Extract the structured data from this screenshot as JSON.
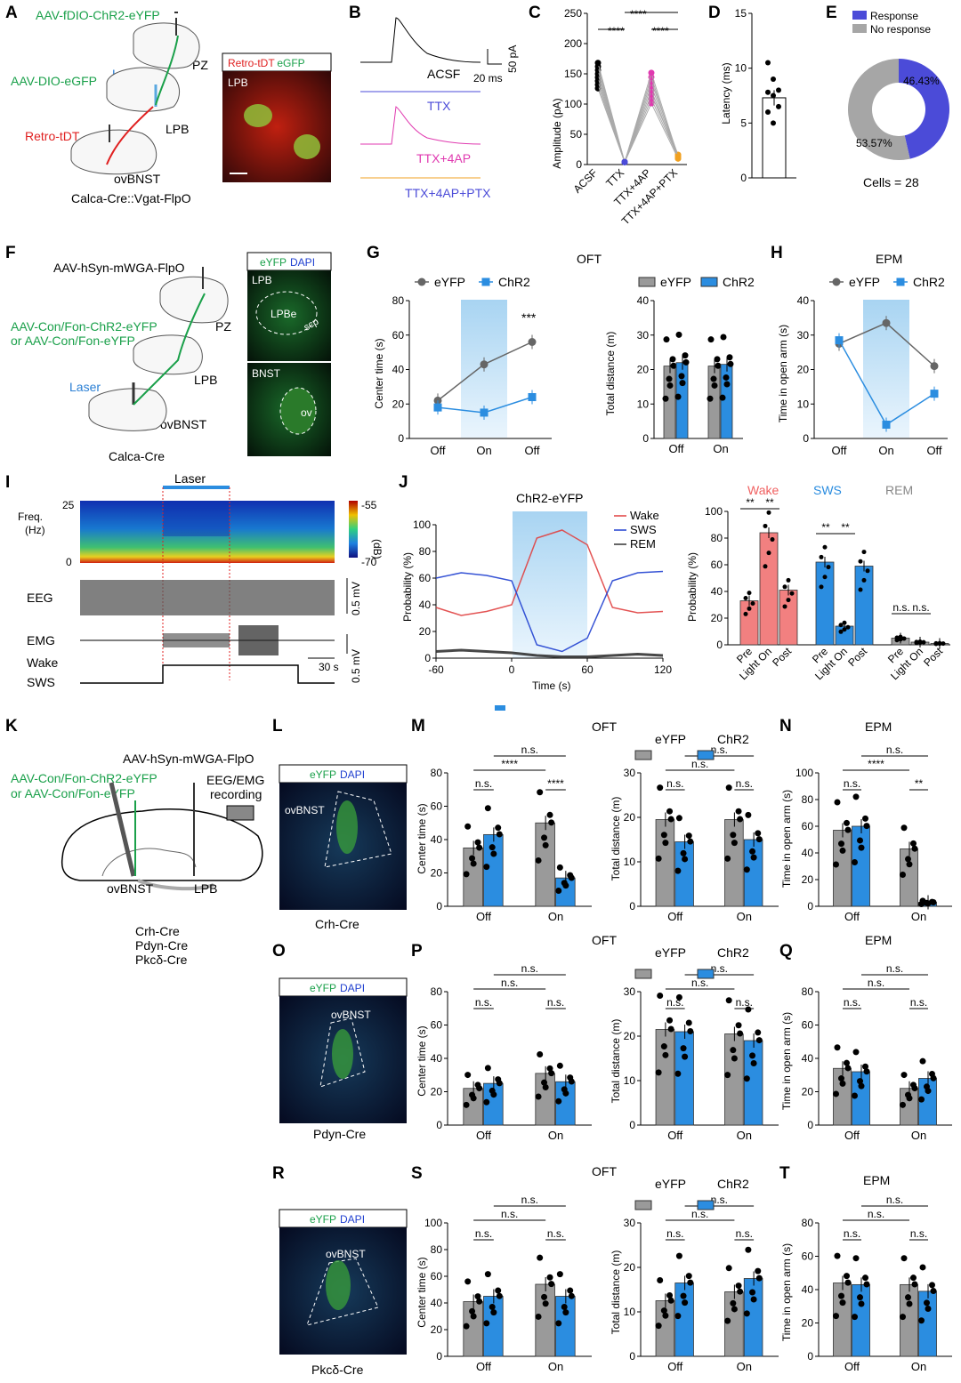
{
  "panel_letters": [
    "A",
    "B",
    "C",
    "D",
    "E",
    "F",
    "G",
    "H",
    "I",
    "J",
    "K",
    "L",
    "M",
    "N",
    "O",
    "P",
    "Q",
    "R",
    "S",
    "T"
  ],
  "panelA": {
    "virus1": "AAV-fDIO-ChR2-eYFP",
    "virus2": "AAV-DIO-eGFP",
    "laser": "Laser",
    "retro": "Retro-tDT",
    "pz": "PZ",
    "lpb": "LPB",
    "ovbnst": "ovBNST",
    "mouse": "Calca-Cre::Vgat-FlpO",
    "micro_title_red": "Retro-tDT",
    "micro_title_green": "eGFP",
    "micro_region": "LPB"
  },
  "panelB": {
    "conditions": [
      "ACSF",
      "TTX",
      "TTX+4AP",
      "TTX+4AP+PTX"
    ],
    "scale_y": "50 pA",
    "scale_x": "20 ms"
  },
  "panelC": {
    "ylabel": "Amplitude (pA)",
    "sig": [
      "****",
      "****",
      "****"
    ],
    "chart_data": {
      "type": "scatter",
      "categories": [
        "ACSF",
        "TTX",
        "TTX+4AP",
        "TTX+4AP+PTX"
      ],
      "ylim": [
        0,
        250
      ],
      "yticks": [
        0,
        50,
        100,
        150,
        200,
        250
      ],
      "series": [
        {
          "values": [
            150,
            5,
            130,
            12
          ]
        }
      ]
    }
  },
  "panelD": {
    "ylabel": "Latency (ms)",
    "chart_data": {
      "type": "bar",
      "values": [
        7.3
      ],
      "ylim": [
        0,
        15
      ],
      "yticks": [
        0,
        5,
        10,
        15
      ],
      "points": [
        10.5,
        9,
        8,
        7.8,
        7.5,
        6.5,
        6,
        5
      ]
    }
  },
  "panelE": {
    "legend": [
      "Response",
      "No response"
    ],
    "labels": [
      "46.43%",
      "53.57%"
    ],
    "cells": "Cells = 28",
    "chart_data": {
      "type": "pie",
      "values": [
        46.43,
        53.57
      ],
      "colors": [
        "#4b4bd8",
        "#a6a6a6"
      ]
    }
  },
  "panelF": {
    "virus1": "AAV-hSyn-mWGA-FlpO",
    "virus2": "AAV-Con/Fon-ChR2-eYFP",
    "virus3": "or AAV-Con/Fon-eYFP",
    "laser": "Laser",
    "pz": "PZ",
    "lpb": "LPB",
    "ovbnst": "ovBNST",
    "mouse": "Calca-Cre",
    "micro_title_green": "eYFP",
    "micro_title_blue": "DAPI",
    "micro1_region": "LPB",
    "micro1_sub": "LPBe",
    "micro1_scp": "scp",
    "micro2_region": "BNST",
    "micro2_sub": "ov"
  },
  "panelG": {
    "title": "OFT",
    "legend": [
      "eYFP",
      "ChR2"
    ],
    "ylabel_left": "Center time (s)",
    "ylabel_right": "Total distance (m)",
    "sig": [
      "**",
      "***"
    ],
    "x_left": [
      "Off",
      "On",
      "Off"
    ],
    "x_right": [
      "Off",
      "On"
    ],
    "chart_data": [
      {
        "type": "line",
        "x": [
          "Off",
          "On",
          "Off"
        ],
        "ylim": [
          0,
          80
        ],
        "yticks": [
          0,
          20,
          40,
          60,
          80
        ],
        "series": [
          {
            "name": "eYFP",
            "values": [
              22,
              43,
              56
            ]
          },
          {
            "name": "ChR2",
            "values": [
              18,
              15,
              24
            ]
          }
        ]
      },
      {
        "type": "bar",
        "categories": [
          "Off",
          "On"
        ],
        "ylim": [
          0,
          40
        ],
        "yticks": [
          0,
          10,
          20,
          30,
          40
        ],
        "series": [
          {
            "name": "eYFP",
            "values": [
              21,
              21
            ]
          },
          {
            "name": "ChR2",
            "values": [
              22,
              21.5
            ]
          }
        ]
      }
    ]
  },
  "panelH": {
    "title": "EPM",
    "legend": [
      "eYFP",
      "ChR2"
    ],
    "ylabel": "Time in open arm (s)",
    "sig": [
      "***"
    ],
    "x": [
      "Off",
      "On",
      "Off"
    ],
    "chart_data": {
      "type": "line",
      "x": [
        "Off",
        "On",
        "Off"
      ],
      "ylim": [
        0,
        40
      ],
      "yticks": [
        0,
        10,
        20,
        30,
        40
      ],
      "series": [
        {
          "name": "eYFP",
          "values": [
            27.5,
            33.5,
            21
          ]
        },
        {
          "name": "ChR2",
          "values": [
            28.5,
            4,
            13
          ]
        }
      ]
    }
  },
  "panelI": {
    "laser": "Laser",
    "freq": "Freq.",
    "hz": "(Hz)",
    "f_top": "25",
    "f_bot": "0",
    "db_top": "-55",
    "db_bot": "-70",
    "db_unit": "(dB)",
    "eeg": "EEG",
    "emg": "EMG",
    "eeg_scale": "0.5 mV",
    "emg_scale": "0.5 mV",
    "time_scale": "30 s",
    "wake": "Wake",
    "sws": "SWS"
  },
  "panelJ": {
    "title": "ChR2-eYFP",
    "ylabel": "Probability (%)",
    "xlabel": "Time (s)",
    "legend": [
      "Wake",
      "SWS",
      "REM"
    ],
    "xticks": [
      "-60",
      "0",
      "60",
      "120"
    ],
    "yticks": [
      "0",
      "20",
      "40",
      "60",
      "80",
      "100"
    ],
    "bar_groups": [
      "Wake",
      "SWS",
      "REM"
    ],
    "bar_ylabel": "Probability (%)",
    "bar_x": [
      "Pre",
      "Light On",
      "Post"
    ],
    "bar_sig": [
      "**",
      "**",
      "**",
      "**",
      "n.s.",
      "n.s."
    ],
    "chart_data": [
      {
        "type": "line",
        "x": [
          -60,
          -40,
          -20,
          0,
          20,
          40,
          60,
          80,
          100,
          120
        ],
        "ylim": [
          0,
          100
        ],
        "series": [
          {
            "name": "Wake",
            "values": [
              38,
              32,
              35,
              40,
              90,
              96,
              85,
              38,
              34,
              35
            ]
          },
          {
            "name": "SWS",
            "values": [
              60,
              64,
              62,
              58,
              10,
              5,
              15,
              58,
              64,
              65
            ]
          },
          {
            "name": "REM",
            "values": [
              5,
              6,
              5,
              4,
              2,
              1,
              1,
              2,
              3,
              2
            ]
          }
        ]
      },
      {
        "type": "bar",
        "categories": [
          "Pre",
          "Light On",
          "Post"
        ],
        "ylim": [
          0,
          100
        ],
        "series": [
          {
            "name": "Wake",
            "values": [
              33,
              84,
              41
            ]
          },
          {
            "name": "SWS",
            "values": [
              62,
              14,
              59
            ]
          },
          {
            "name": "REM",
            "values": [
              5,
              2,
              1
            ]
          }
        ]
      }
    ]
  },
  "panelK": {
    "virus1": "AAV-hSyn-mWGA-FlpO",
    "virus2": "AAV-Con/Fon-ChR2-eYFP",
    "virus3": "or AAV-Con/Fon-eYFP",
    "eeg": "EEG/EMG",
    "rec": "recording",
    "ovbnst": "ovBNST",
    "lpb": "LPB",
    "lines": [
      "Crh-Cre",
      "Pdyn-Cre",
      "Pkcδ-Cre"
    ]
  },
  "micro_labels": {
    "green": "eYFP",
    "blue": "DAPI",
    "region": "ovBNST"
  },
  "mice": [
    "Crh-Cre",
    "Pdyn-Cre",
    "Pkcδ-Cre"
  ],
  "row_groups": {
    "oft": "OFT",
    "epm": "EPM",
    "legend": [
      "eYFP",
      "ChR2"
    ],
    "center": "Center time (s)",
    "dist": "Total distance (m)",
    "openarm": "Time in open arm (s)",
    "x": [
      "Off",
      "On"
    ]
  },
  "panelM": {
    "sig_center": [
      "n.s.",
      "****",
      "n.s.",
      "****"
    ],
    "sig_dist": [
      "n.s.",
      "n.s.",
      "n.s.",
      "n.s."
    ],
    "chart_data": [
      {
        "type": "bar",
        "categories": [
          "Off",
          "On"
        ],
        "ylim": [
          0,
          80
        ],
        "series": [
          {
            "name": "eYFP",
            "values": [
              35,
              50
            ]
          },
          {
            "name": "ChR2",
            "values": [
              43,
              17
            ]
          }
        ]
      },
      {
        "type": "bar",
        "categories": [
          "Off",
          "On"
        ],
        "ylim": [
          0,
          30
        ],
        "series": [
          {
            "name": "eYFP",
            "values": [
              19.5,
              19.5
            ]
          },
          {
            "name": "ChR2",
            "values": [
              14.5,
              15
            ]
          }
        ]
      }
    ]
  },
  "panelN": {
    "sig": [
      "n.s.",
      "****",
      "n.s.",
      "**"
    ],
    "chart_data": {
      "type": "bar",
      "categories": [
        "Off",
        "On"
      ],
      "ylim": [
        0,
        100
      ],
      "series": [
        {
          "name": "eYFP",
          "values": [
            57,
            43
          ]
        },
        {
          "name": "ChR2",
          "values": [
            60,
            3
          ]
        }
      ]
    }
  },
  "panelP": {
    "sig_center": [
      "n.s.",
      "n.s.",
      "n.s.",
      "n.s."
    ],
    "sig_dist": [
      "n.s.",
      "n.s.",
      "n.s.",
      "n.s."
    ],
    "chart_data": [
      {
        "type": "bar",
        "categories": [
          "Off",
          "On"
        ],
        "ylim": [
          0,
          80
        ],
        "series": [
          {
            "name": "eYFP",
            "values": [
              22,
              31
            ]
          },
          {
            "name": "ChR2",
            "values": [
              25,
              26
            ]
          }
        ]
      },
      {
        "type": "bar",
        "categories": [
          "Off",
          "On"
        ],
        "ylim": [
          0,
          30
        ],
        "series": [
          {
            "name": "eYFP",
            "values": [
              21.5,
              20.5
            ]
          },
          {
            "name": "ChR2",
            "values": [
              21,
              19
            ]
          }
        ]
      }
    ]
  },
  "panelQ": {
    "sig": [
      "n.s.",
      "n.s.",
      "n.s.",
      "n.s."
    ],
    "chart_data": {
      "type": "bar",
      "categories": [
        "Off",
        "On"
      ],
      "ylim": [
        0,
        80
      ],
      "series": [
        {
          "name": "eYFP",
          "values": [
            34,
            22
          ]
        },
        {
          "name": "ChR2",
          "values": [
            32,
            28
          ]
        }
      ]
    }
  },
  "panelS": {
    "sig_center": [
      "n.s.",
      "n.s.",
      "n.s.",
      "n.s."
    ],
    "sig_dist": [
      "n.s.",
      "n.s.",
      "n.s.",
      "n.s."
    ],
    "chart_data": [
      {
        "type": "bar",
        "categories": [
          "Off",
          "On"
        ],
        "ylim": [
          0,
          100
        ],
        "series": [
          {
            "name": "eYFP",
            "values": [
              41,
              54
            ]
          },
          {
            "name": "ChR2",
            "values": [
              45,
              45
            ]
          }
        ]
      },
      {
        "type": "bar",
        "categories": [
          "Off",
          "On"
        ],
        "ylim": [
          0,
          30
        ],
        "series": [
          {
            "name": "eYFP",
            "values": [
              12.5,
              14.5
            ]
          },
          {
            "name": "ChR2",
            "values": [
              16.5,
              17.5
            ]
          }
        ]
      }
    ]
  },
  "panelT": {
    "sig": [
      "n.s.",
      "n.s.",
      "n.s.",
      "n.s."
    ],
    "chart_data": {
      "type": "bar",
      "categories": [
        "Off",
        "On"
      ],
      "ylim": [
        0,
        80
      ],
      "series": [
        {
          "name": "eYFP",
          "values": [
            44,
            43
          ]
        },
        {
          "name": "ChR2",
          "values": [
            43,
            39
          ]
        }
      ]
    }
  },
  "colors": {
    "eyfp": "#9a9a9a",
    "chr2": "#2b8de0",
    "wake": "#f08080",
    "sws": "#2b8de0",
    "rem": "#9a9a9a",
    "green": "#1aa04a"
  }
}
